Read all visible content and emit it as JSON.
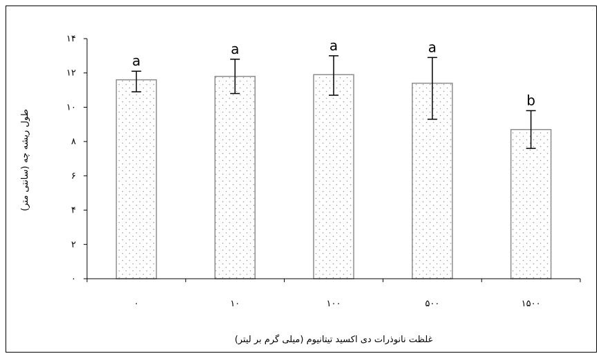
{
  "chart_data": {
    "type": "bar",
    "title": "",
    "xlabel": "غلظت نانوذرات دی اکسید تیتانیوم (میلی گرم بر لیتر)",
    "ylabel": "طول ریشه چه (سانتی متر)",
    "categories": [
      "۰",
      "۱۰",
      "۱۰۰",
      "۵۰۰",
      "۱۵۰۰"
    ],
    "values": [
      11.6,
      11.8,
      11.9,
      11.4,
      8.7
    ],
    "error_low": [
      10.9,
      10.8,
      10.7,
      9.3,
      7.6
    ],
    "error_high": [
      12.1,
      12.8,
      13.0,
      12.9,
      9.8
    ],
    "significance": [
      "a",
      "a",
      "a",
      "a",
      "b"
    ],
    "ylim": [
      0,
      14
    ],
    "yticks": [
      0,
      2,
      4,
      6,
      8,
      10,
      12,
      14
    ],
    "ytick_labels": [
      "۰",
      "۲",
      "۴",
      "۶",
      "۸",
      "۱۰",
      "۱۲",
      "۱۴"
    ],
    "grid": false,
    "legend": "none",
    "bar_fill": "dotted-gray"
  }
}
